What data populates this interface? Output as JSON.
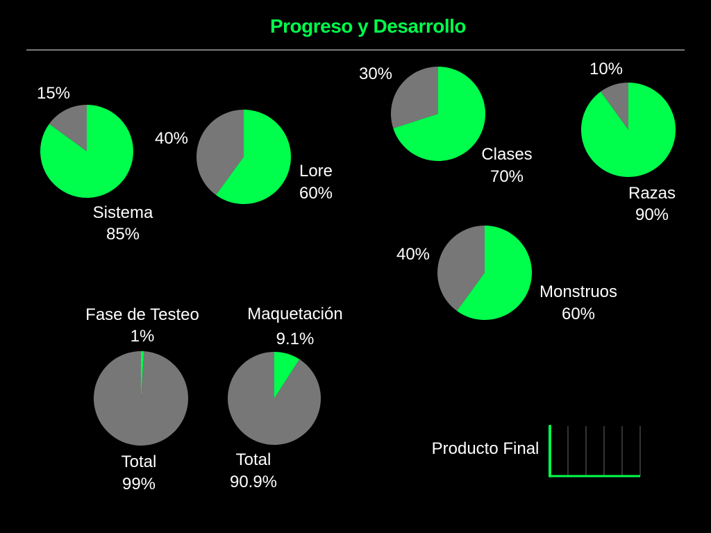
{
  "title": "Progreso y Desarrollo",
  "colors": {
    "accent": "#00ff4c",
    "remaining": "#777777",
    "background": "#000000",
    "text": "#ffffff"
  },
  "chart_data": [
    {
      "type": "pie",
      "id": "sistema",
      "name": "Sistema",
      "completed": 85,
      "remaining": 15,
      "completed_label": "85%",
      "remaining_label": "15%"
    },
    {
      "type": "pie",
      "id": "lore",
      "name": "Lore",
      "completed": 60,
      "remaining": 40,
      "completed_label": "60%",
      "remaining_label": "40%"
    },
    {
      "type": "pie",
      "id": "clases",
      "name": "Clases",
      "completed": 70,
      "remaining": 30,
      "completed_label": "70%",
      "remaining_label": "30%"
    },
    {
      "type": "pie",
      "id": "razas",
      "name": "Razas",
      "completed": 90,
      "remaining": 10,
      "completed_label": "90%",
      "remaining_label": "10%"
    },
    {
      "type": "pie",
      "id": "monstruos",
      "name": "Monstruos",
      "completed": 60,
      "remaining": 40,
      "completed_label": "60%",
      "remaining_label": "40%"
    },
    {
      "type": "pie",
      "id": "testeo",
      "name": "Fase de Testeo",
      "completed": 1,
      "remaining": 99,
      "completed_label": "1%",
      "remaining_name": "Total",
      "remaining_label": "99%"
    },
    {
      "type": "pie",
      "id": "maquetacion",
      "name": "Maquetación",
      "completed": 9.1,
      "remaining": 90.9,
      "completed_label": "9.1%",
      "remaining_name": "Total",
      "remaining_label": "90.9%"
    },
    {
      "type": "bar",
      "id": "producto",
      "name": "Producto Final",
      "value": 0,
      "ylim": [
        0,
        100
      ],
      "grid": true
    }
  ]
}
